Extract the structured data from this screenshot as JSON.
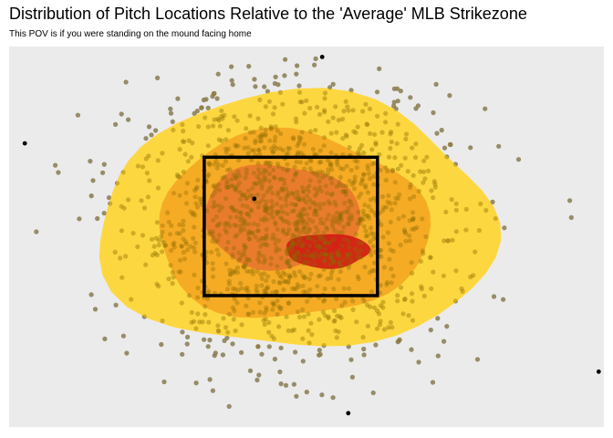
{
  "chart_data": {
    "type": "scatter",
    "title": "Distribution of Pitch Locations Relative to the 'Average' MLB Strikezone",
    "subtitle": "This POV is if you were standing on the mound facing home",
    "xlabel": "",
    "ylabel": "",
    "xlim": [
      -2.7,
      3.0
    ],
    "ylim": [
      -0.4,
      5.1
    ],
    "grid": false,
    "panel_color": "#ebebeb",
    "point_color": "#9e9e9e",
    "outlier_color": "#000000",
    "density_colors": [
      "#ffd52e",
      "#f5a622",
      "#e8772e",
      "#d01a14"
    ],
    "strike_zone": {
      "x": [
        -0.83,
        0.83
      ],
      "y": [
        1.5,
        3.5
      ]
    },
    "pitch_cloud": {
      "center_x": 0.0,
      "center_y": 2.55,
      "sd_x": 0.75,
      "sd_y": 0.95,
      "count": 1500
    },
    "outliers": {
      "x": [
        -2.55,
        2.95,
        0.3,
        0.55,
        -0.35
      ],
      "y": [
        3.7,
        0.4,
        4.95,
        -0.2,
        2.9
      ]
    },
    "density_levels": [
      {
        "level": 1,
        "center_x": 0.05,
        "center_y": 2.55,
        "rx": 1.9,
        "ry": 1.85
      },
      {
        "level": 2,
        "center_x": 0.0,
        "center_y": 2.5,
        "rx": 1.3,
        "ry": 1.35
      },
      {
        "level": 3,
        "center_x": -0.1,
        "center_y": 2.65,
        "rx": 0.75,
        "ry": 0.75
      },
      {
        "level": 4,
        "center_x": 0.35,
        "center_y": 2.15,
        "rx": 0.4,
        "ry": 0.25
      }
    ]
  }
}
